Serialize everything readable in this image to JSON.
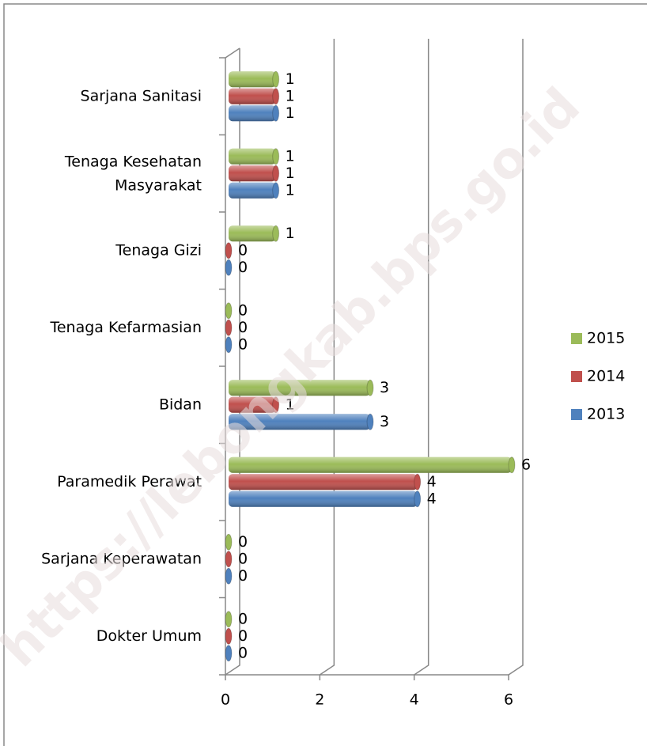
{
  "chart_data": {
    "type": "hbar3d",
    "categories": [
      "Sarjana Sanitasi",
      "Tenaga Kesehatan Masyarakat",
      "Tenaga Gizi",
      "Tenaga Kefarmasian",
      "Bidan",
      "Paramedik Perawat",
      "Sarjana Keperawatan",
      "Dokter Umum"
    ],
    "series": [
      {
        "name": "2015",
        "color": "#9bbb59",
        "values": [
          1,
          1,
          1,
          0,
          3,
          6,
          0,
          0
        ]
      },
      {
        "name": "2014",
        "color": "#c0504d",
        "values": [
          1,
          1,
          0,
          0,
          1,
          4,
          0,
          0
        ]
      },
      {
        "name": "2013",
        "color": "#4f81bd",
        "values": [
          1,
          1,
          0,
          0,
          3,
          4,
          0,
          0
        ]
      }
    ],
    "xlim": [
      0,
      6
    ],
    "xticks": [
      0,
      2,
      4,
      6
    ],
    "grid": true,
    "legend": "right",
    "watermark": "https://lebongkab.bps.go.id"
  }
}
